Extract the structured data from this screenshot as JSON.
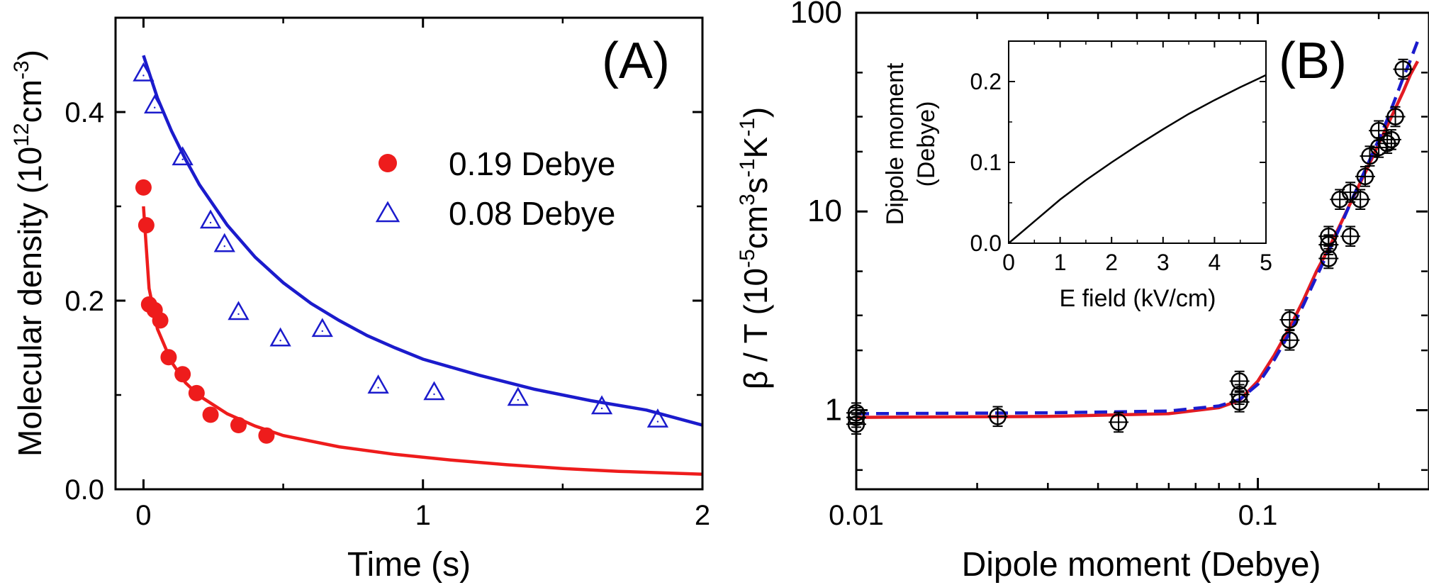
{
  "chart_data": [
    {
      "panel": "(A)",
      "type": "scatter",
      "xlabel": "Time (s)",
      "ylabel_parts": [
        "Molecular density (10",
        "12",
        "cm",
        "-3",
        ")"
      ],
      "xlim": [
        -0.1,
        2.0
      ],
      "ylim": [
        0.0,
        0.5
      ],
      "xticks": [
        0,
        1,
        2
      ],
      "xtick_labels": [
        "0",
        "1",
        "2"
      ],
      "yticks": [
        0.0,
        0.2,
        0.4
      ],
      "ytick_labels": [
        "0.0",
        "0.2",
        "0.4"
      ],
      "legend": {
        "placement": "upper-right"
      },
      "series": [
        {
          "name": "0.19 Debye",
          "marker": "filled-circle",
          "color": "#ee1c1c",
          "points": [
            [
              0.0,
              0.32
            ],
            [
              0.01,
              0.28
            ],
            [
              0.02,
              0.196
            ],
            [
              0.04,
              0.19
            ],
            [
              0.06,
              0.179
            ],
            [
              0.09,
              0.14
            ],
            [
              0.14,
              0.122
            ],
            [
              0.19,
              0.102
            ],
            [
              0.24,
              0.079
            ],
            [
              0.34,
              0.068
            ],
            [
              0.44,
              0.057
            ]
          ],
          "fit": [
            [
              0.0,
              0.3
            ],
            [
              0.02,
              0.213
            ],
            [
              0.05,
              0.17
            ],
            [
              0.1,
              0.135
            ],
            [
              0.15,
              0.113
            ],
            [
              0.2,
              0.099
            ],
            [
              0.3,
              0.08
            ],
            [
              0.4,
              0.067
            ],
            [
              0.5,
              0.057
            ],
            [
              0.7,
              0.045
            ],
            [
              0.9,
              0.037
            ],
            [
              1.1,
              0.031
            ],
            [
              1.3,
              0.026
            ],
            [
              1.5,
              0.022
            ],
            [
              1.7,
              0.019
            ],
            [
              2.0,
              0.016
            ]
          ]
        },
        {
          "name": "0.08 Debye",
          "marker": "open-triangle",
          "color": "#1b1bcc",
          "points": [
            [
              0.0,
              0.441
            ],
            [
              0.04,
              0.407
            ],
            [
              0.14,
              0.352
            ],
            [
              0.24,
              0.285
            ],
            [
              0.29,
              0.26
            ],
            [
              0.34,
              0.188
            ],
            [
              0.49,
              0.16
            ],
            [
              0.64,
              0.17
            ],
            [
              0.84,
              0.11
            ],
            [
              1.04,
              0.103
            ],
            [
              1.34,
              0.097
            ],
            [
              1.64,
              0.088
            ],
            [
              1.84,
              0.074
            ]
          ],
          "fit": [
            [
              0.0,
              0.46
            ],
            [
              0.05,
              0.415
            ],
            [
              0.1,
              0.38
            ],
            [
              0.15,
              0.35
            ],
            [
              0.2,
              0.323
            ],
            [
              0.3,
              0.28
            ],
            [
              0.4,
              0.246
            ],
            [
              0.5,
              0.219
            ],
            [
              0.6,
              0.197
            ],
            [
              0.7,
              0.179
            ],
            [
              0.8,
              0.163
            ],
            [
              0.9,
              0.15
            ],
            [
              1.0,
              0.138
            ],
            [
              1.2,
              0.121
            ],
            [
              1.4,
              0.106
            ],
            [
              1.6,
              0.094
            ],
            [
              1.8,
              0.084
            ],
            [
              2.0,
              0.068
            ]
          ]
        }
      ]
    },
    {
      "panel": "(B)",
      "type": "scatter",
      "xlabel": "Dipole moment (Debye)",
      "ylabel_parts": [
        "β / T (10",
        "-5",
        "cm",
        "3",
        "s",
        "-1",
        "K",
        "-1",
        ")"
      ],
      "xscale": "log",
      "yscale": "log",
      "xlim": [
        0.01,
        0.25
      ],
      "ylim": [
        0.4,
        100
      ],
      "xticks": [
        0.01,
        0.1
      ],
      "xtick_labels": [
        "0.01",
        "0.1"
      ],
      "yticks": [
        1,
        10,
        100
      ],
      "ytick_labels": [
        "1",
        "10",
        "100"
      ],
      "data_marker": "open-circle-with-error-bars",
      "points": [
        [
          0.01,
          0.85
        ],
        [
          0.01,
          0.92
        ],
        [
          0.01,
          0.97
        ],
        [
          0.0225,
          0.93
        ],
        [
          0.045,
          0.87
        ],
        [
          0.09,
          1.1
        ],
        [
          0.09,
          1.2
        ],
        [
          0.09,
          1.4
        ],
        [
          0.12,
          2.25
        ],
        [
          0.12,
          2.85
        ],
        [
          0.15,
          5.8
        ],
        [
          0.15,
          6.8
        ],
        [
          0.15,
          7.5
        ],
        [
          0.16,
          11.5
        ],
        [
          0.17,
          7.5
        ],
        [
          0.17,
          12.5
        ],
        [
          0.18,
          11.5
        ],
        [
          0.185,
          15
        ],
        [
          0.19,
          19
        ],
        [
          0.2,
          21
        ],
        [
          0.2,
          25.5
        ],
        [
          0.21,
          22
        ],
        [
          0.215,
          23
        ],
        [
          0.22,
          30
        ],
        [
          0.23,
          52
        ]
      ],
      "fit_curves": [
        {
          "style": "solid",
          "color": "#e21b23",
          "points": [
            [
              0.01,
              0.92
            ],
            [
              0.03,
              0.93
            ],
            [
              0.06,
              0.96
            ],
            [
              0.08,
              1.03
            ],
            [
              0.09,
              1.12
            ],
            [
              0.1,
              1.4
            ],
            [
              0.11,
              1.9
            ],
            [
              0.12,
              2.6
            ],
            [
              0.13,
              3.6
            ],
            [
              0.14,
              5
            ],
            [
              0.15,
              6.5
            ],
            [
              0.16,
              8.5
            ],
            [
              0.17,
              11
            ],
            [
              0.18,
              14
            ],
            [
              0.19,
              17.5
            ],
            [
              0.2,
              22
            ],
            [
              0.21,
              27
            ],
            [
              0.22,
              33
            ],
            [
              0.23,
              40
            ],
            [
              0.24,
              49
            ],
            [
              0.25,
              57
            ]
          ]
        },
        {
          "style": "dashed",
          "color": "#1b1bcc",
          "points": [
            [
              0.01,
              0.96
            ],
            [
              0.03,
              0.97
            ],
            [
              0.06,
              0.99
            ],
            [
              0.08,
              1.05
            ],
            [
              0.09,
              1.13
            ],
            [
              0.1,
              1.35
            ],
            [
              0.11,
              1.8
            ],
            [
              0.12,
              2.45
            ],
            [
              0.13,
              3.4
            ],
            [
              0.14,
              4.7
            ],
            [
              0.15,
              6.3
            ],
            [
              0.16,
              8.3
            ],
            [
              0.17,
              11
            ],
            [
              0.18,
              14.3
            ],
            [
              0.19,
              18.2
            ],
            [
              0.2,
              23
            ],
            [
              0.21,
              29
            ],
            [
              0.22,
              37
            ],
            [
              0.23,
              47
            ],
            [
              0.24,
              58
            ],
            [
              0.25,
              72
            ]
          ]
        }
      ],
      "inset": {
        "type": "line",
        "xlabel": "E field (kV/cm)",
        "ylabel_line1": "Dipole moment",
        "ylabel_line2": "(Debye)",
        "xlim": [
          0,
          5
        ],
        "ylim": [
          0,
          0.25
        ],
        "xticks": [
          0,
          1,
          2,
          3,
          4,
          5
        ],
        "xtick_labels": [
          "0",
          "1",
          "2",
          "3",
          "4",
          "5"
        ],
        "yticks": [
          0.0,
          0.1,
          0.2
        ],
        "ytick_labels": [
          "0.0",
          "0.1",
          "0.2"
        ],
        "color": "#000000",
        "points": [
          [
            0,
            0
          ],
          [
            0.5,
            0.027
          ],
          [
            1,
            0.054
          ],
          [
            1.5,
            0.078
          ],
          [
            2,
            0.1
          ],
          [
            2.5,
            0.121
          ],
          [
            3,
            0.141
          ],
          [
            3.5,
            0.16
          ],
          [
            4,
            0.177
          ],
          [
            4.5,
            0.193
          ],
          [
            5,
            0.208
          ]
        ]
      }
    }
  ]
}
